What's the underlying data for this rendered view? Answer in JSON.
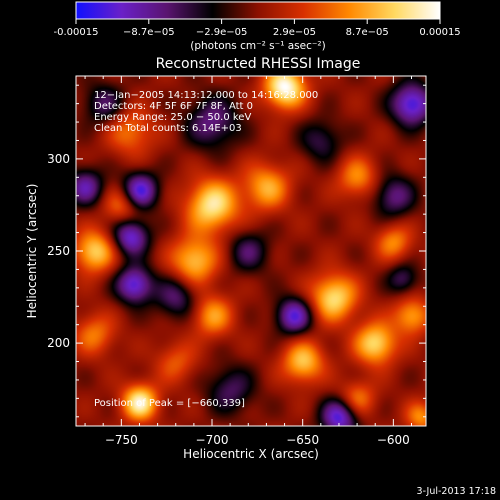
{
  "colorbar": {
    "tick_labels": [
      "-0.00015",
      "−8.7e−05",
      "−2.9e−05",
      "2.9e−05",
      "8.7e−05",
      "0.00015"
    ],
    "units_label": "(photons cm⁻² s⁻¹ asec⁻²)",
    "range": [
      -0.00015,
      0.00015
    ],
    "colors": [
      "#1010ff",
      "#6a20c8",
      "#5a1470",
      "#000000",
      "#8c1000",
      "#d83000",
      "#ff8800",
      "#ffd860",
      "#ffffff"
    ]
  },
  "chart_data": {
    "type": "heatmap",
    "title": "Reconstructed RHESSI Image",
    "xlabel": "Heliocentric X (arcsec)",
    "ylabel": "Heliocentric Y (arcsec)",
    "xlim": [
      -775,
      -582
    ],
    "ylim": [
      155,
      345
    ],
    "x_ticks": [
      -750,
      -700,
      -650,
      -600
    ],
    "x_tick_labels": [
      "−750",
      "−700",
      "−650",
      "−600"
    ],
    "y_ticks": [
      200,
      250,
      300
    ],
    "y_tick_labels": [
      "200",
      "250",
      "300"
    ],
    "annotations": [
      "12−Jan−2005 14:13:12.000 to 14:16:28.000",
      "Detectors: 4F 5F 6F 7F 8F, Att 0",
      "Energy Range: 25.0 − 50.0 keV",
      "Clean    Total counts: 6.14E+03"
    ],
    "peak_label": "Position of Peak = [−660,339]",
    "peak": [
      -660,
      339
    ],
    "sources": [
      {
        "x": -660,
        "y": 339,
        "amp": 1.0,
        "s": 8
      },
      {
        "x": -700,
        "y": 275,
        "amp": 0.85,
        "s": 10
      },
      {
        "x": -710,
        "y": 245,
        "amp": 0.7,
        "s": 9
      },
      {
        "x": -765,
        "y": 250,
        "amp": 0.75,
        "s": 8
      },
      {
        "x": -740,
        "y": 168,
        "amp": 0.9,
        "s": 7
      },
      {
        "x": -633,
        "y": 225,
        "amp": 0.8,
        "s": 9
      },
      {
        "x": -610,
        "y": 200,
        "amp": 0.8,
        "s": 8
      },
      {
        "x": -590,
        "y": 215,
        "amp": 0.6,
        "s": 7
      },
      {
        "x": -650,
        "y": 190,
        "amp": 0.7,
        "s": 8
      },
      {
        "x": -700,
        "y": 215,
        "amp": 0.55,
        "s": 8
      },
      {
        "x": -670,
        "y": 285,
        "amp": 0.6,
        "s": 9
      },
      {
        "x": -620,
        "y": 290,
        "amp": 0.5,
        "s": 8
      },
      {
        "x": -745,
        "y": 315,
        "amp": 0.45,
        "s": 9
      },
      {
        "x": -765,
        "y": 205,
        "amp": 0.45,
        "s": 8
      },
      {
        "x": -720,
        "y": 190,
        "amp": 0.35,
        "s": 8
      },
      {
        "x": -600,
        "y": 255,
        "amp": 0.5,
        "s": 7
      },
      {
        "x": -585,
        "y": 160,
        "amp": 0.5,
        "s": 6
      },
      {
        "x": -620,
        "y": 170,
        "amp": 0.45,
        "s": 7
      },
      {
        "x": -750,
        "y": 275,
        "amp": 0.45,
        "s": 7
      },
      {
        "x": -740,
        "y": 283,
        "amp": -0.85,
        "s": 7
      },
      {
        "x": -745,
        "y": 258,
        "amp": -0.8,
        "s": 7
      },
      {
        "x": -743,
        "y": 232,
        "amp": -0.85,
        "s": 7
      },
      {
        "x": -770,
        "y": 285,
        "amp": -0.65,
        "s": 7
      },
      {
        "x": -590,
        "y": 330,
        "amp": -0.9,
        "s": 8
      },
      {
        "x": -655,
        "y": 215,
        "amp": -0.8,
        "s": 7
      },
      {
        "x": -630,
        "y": 160,
        "amp": -0.85,
        "s": 7
      },
      {
        "x": -700,
        "y": 320,
        "amp": -0.55,
        "s": 10
      },
      {
        "x": -720,
        "y": 225,
        "amp": -0.5,
        "s": 8
      },
      {
        "x": -680,
        "y": 250,
        "amp": -0.45,
        "s": 8
      },
      {
        "x": -600,
        "y": 280,
        "amp": -0.55,
        "s": 8
      },
      {
        "x": -690,
        "y": 175,
        "amp": -0.45,
        "s": 9
      },
      {
        "x": -760,
        "y": 330,
        "amp": -0.45,
        "s": 8
      },
      {
        "x": -640,
        "y": 310,
        "amp": -0.4,
        "s": 8
      },
      {
        "x": -595,
        "y": 235,
        "amp": -0.45,
        "s": 6
      }
    ]
  },
  "footer": {
    "timestamp": "3-Jul-2013 17:18"
  }
}
